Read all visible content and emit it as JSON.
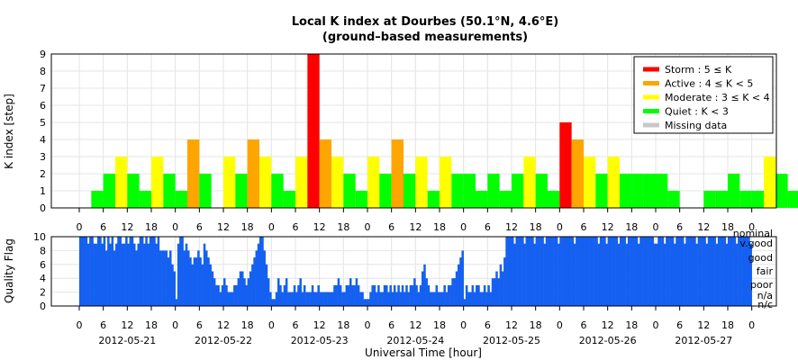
{
  "chart_data": [
    {
      "type": "bar",
      "title": "Local K index at Dourbes (50.1°N, 4.6°E)",
      "subtitle": "(ground–based measurements)",
      "ylabel": "K index [step]",
      "ylim": [
        0,
        9
      ],
      "yticks": [
        "0",
        "1",
        "2",
        "3",
        "4",
        "5",
        "6",
        "7",
        "8",
        "9"
      ],
      "x_unit_hours": 3,
      "hour_ticks": [
        "0",
        "6",
        "12",
        "18"
      ],
      "final_hour_tick": "0",
      "grid": true,
      "legend_position": "top-right",
      "colors": {
        "storm": "#ff0000",
        "active": "#ffa500",
        "moderate": "#ffff00",
        "quiet": "#00ff00",
        "missing": "#c8c8c8"
      },
      "legend": [
        {
          "label": "Storm : 5 ≤ K",
          "color": "#ff0000"
        },
        {
          "label": "Active : 4 ≤ K < 5",
          "color": "#ffa500"
        },
        {
          "label": "Moderate : 3 ≤ K < 4",
          "color": "#ffff00"
        },
        {
          "label": "Quiet : K < 3",
          "color": "#00ff00"
        },
        {
          "label": "Missing data",
          "color": "#c8c8c8"
        }
      ],
      "k_values": [
        0,
        1,
        2,
        3,
        2,
        1,
        3,
        2,
        1,
        4,
        2,
        0,
        3,
        2,
        4,
        3,
        2,
        1,
        3,
        9,
        4,
        3,
        2,
        1,
        3,
        2,
        4,
        2,
        3,
        1,
        3,
        2,
        2,
        1,
        2,
        1,
        2,
        3,
        2,
        1,
        5,
        4,
        3,
        2,
        3,
        2,
        2,
        2,
        2,
        1,
        0,
        0,
        1,
        1,
        2,
        1,
        1,
        3,
        2,
        1
      ]
    },
    {
      "type": "bar",
      "ylabel": "Quality Flag",
      "xlabel": "Universal Time [hour]",
      "ylim": [
        0,
        10
      ],
      "yticks": [
        "0",
        "2",
        "4",
        "6",
        "8",
        "10"
      ],
      "bar_color": "#1560f0",
      "level_labels": [
        "nominal",
        "v.good",
        "good",
        "fair",
        "poor",
        "n/a",
        "n/c"
      ],
      "dates": [
        "2012-05-21",
        "2012-05-22",
        "2012-05-23",
        "2012-05-24",
        "2012-05-25",
        "2012-05-26",
        "2012-05-27"
      ],
      "per_day_values": [
        [
          10,
          10,
          10,
          10,
          9,
          10,
          10,
          9,
          9,
          10,
          10,
          9,
          10,
          8,
          10,
          9,
          10,
          8,
          9,
          10,
          10,
          9,
          9,
          10,
          9,
          10,
          10,
          9,
          8,
          9,
          10,
          10,
          9,
          10,
          9,
          10,
          10,
          10,
          9,
          10,
          8,
          8,
          8,
          8,
          7,
          8,
          6,
          5
        ],
        [
          1,
          9,
          10,
          10,
          8,
          9,
          8,
          7,
          6,
          7,
          7,
          8,
          7,
          6,
          9,
          8,
          7,
          6,
          5,
          4,
          3,
          3,
          2,
          3,
          4,
          3,
          2,
          2,
          2,
          3,
          3,
          4,
          5,
          5,
          4,
          3,
          4,
          5,
          6,
          7,
          8,
          9,
          10,
          10,
          8,
          6,
          4,
          2
        ],
        [
          1,
          1,
          2,
          4,
          3,
          2,
          3,
          4,
          2,
          2,
          2,
          3,
          2,
          3,
          4,
          2,
          3,
          2,
          2,
          2,
          3,
          2,
          2,
          3,
          2,
          2,
          2,
          2,
          2,
          2,
          2,
          3,
          3,
          4,
          3,
          2,
          2,
          3,
          3,
          4,
          3,
          3,
          4,
          3,
          2,
          2,
          1,
          1
        ],
        [
          1,
          2,
          3,
          3,
          2,
          3,
          2,
          2,
          3,
          3,
          2,
          3,
          2,
          3,
          2,
          3,
          2,
          3,
          2,
          3,
          2,
          3,
          3,
          4,
          3,
          2,
          3,
          5,
          6,
          4,
          3,
          2,
          2,
          2,
          3,
          2,
          2,
          2,
          3,
          2,
          3,
          3,
          4,
          4,
          5,
          6,
          7,
          8
        ],
        [
          1,
          3,
          2,
          2,
          3,
          2,
          3,
          3,
          2,
          2,
          3,
          2,
          3,
          2,
          4,
          4,
          5,
          4,
          6,
          5,
          7,
          10,
          10,
          10,
          10,
          9,
          10,
          10,
          10,
          10,
          9,
          10,
          10,
          10,
          10,
          9,
          10,
          10,
          10,
          10,
          9,
          10,
          10,
          10,
          10,
          10,
          10,
          9
        ],
        [
          10,
          10,
          10,
          10,
          10,
          10,
          10,
          9,
          10,
          10,
          10,
          10,
          10,
          10,
          10,
          10,
          10,
          10,
          10,
          9,
          10,
          10,
          10,
          9,
          10,
          10,
          10,
          10,
          10,
          9,
          10,
          10,
          10,
          9,
          10,
          10,
          10,
          10,
          10,
          9,
          10,
          10,
          10,
          10,
          10,
          10,
          10,
          9
        ],
        [
          9,
          10,
          10,
          10,
          9,
          10,
          10,
          10,
          10,
          9,
          10,
          10,
          10,
          10,
          9,
          10,
          10,
          10,
          10,
          10,
          9,
          10,
          10,
          10,
          10,
          9,
          10,
          10,
          10,
          10,
          9,
          10,
          10,
          10,
          10,
          9,
          10,
          10,
          10,
          10,
          9,
          10,
          10,
          10,
          10,
          10,
          10,
          9
        ]
      ]
    }
  ]
}
